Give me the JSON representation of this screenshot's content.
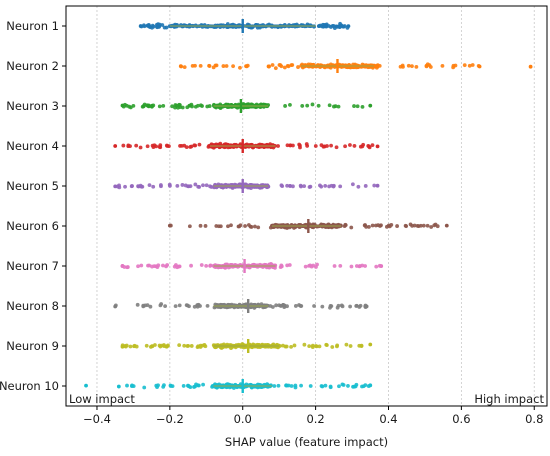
{
  "chart_data": {
    "type": "scatter",
    "xlabel": "SHAP value (feature impact)",
    "xlim": [
      -0.485,
      0.835
    ],
    "xticks": [
      -0.4,
      -0.2,
      0.0,
      0.2,
      0.4,
      0.6,
      0.8
    ],
    "xtick_labels": [
      "−0.4",
      "−0.2",
      "0.0",
      "0.2",
      "0.4",
      "0.6",
      "0.8"
    ],
    "grid": "vertical dashed",
    "annotations": {
      "left": "Low impact",
      "right": "High impact"
    },
    "categories": [
      "Neuron 1",
      "Neuron 2",
      "Neuron 3",
      "Neuron 4",
      "Neuron 5",
      "Neuron 6",
      "Neuron 7",
      "Neuron 8",
      "Neuron 9",
      "Neuron 10"
    ],
    "series": [
      {
        "color": "#1f77b4",
        "min": -0.28,
        "max": 0.29,
        "q1": -0.2,
        "q3": 0.2,
        "median": 0.0,
        "outliers": []
      },
      {
        "color": "#ff7f0e",
        "min": -0.17,
        "max": 0.65,
        "q1": 0.16,
        "q3": 0.36,
        "median": 0.26,
        "outliers": [
          0.79
        ]
      },
      {
        "color": "#2ca02c",
        "min": -0.33,
        "max": 0.35,
        "q1": -0.08,
        "q3": 0.07,
        "median": -0.005,
        "outliers": []
      },
      {
        "color": "#d62728",
        "min": -0.35,
        "max": 0.37,
        "q1": -0.09,
        "q3": 0.09,
        "median": 0.0,
        "outliers": []
      },
      {
        "color": "#9467bd",
        "min": -0.35,
        "max": 0.37,
        "q1": -0.08,
        "q3": 0.07,
        "median": 0.0,
        "outliers": []
      },
      {
        "color": "#8c564b",
        "min": -0.2,
        "max": 0.56,
        "q1": 0.08,
        "q3": 0.27,
        "median": 0.18,
        "outliers": []
      },
      {
        "color": "#e377c2",
        "min": -0.33,
        "max": 0.38,
        "q1": -0.08,
        "q3": 0.09,
        "median": 0.005,
        "outliers": []
      },
      {
        "color": "#7f7f7f",
        "min": -0.35,
        "max": 0.34,
        "q1": -0.08,
        "q3": 0.07,
        "median": 0.015,
        "outliers": []
      },
      {
        "color": "#bcbd22",
        "min": -0.33,
        "max": 0.35,
        "q1": -0.08,
        "q3": 0.1,
        "median": 0.015,
        "outliers": []
      },
      {
        "color": "#17becf",
        "min": -0.34,
        "max": 0.35,
        "q1": -0.08,
        "q3": 0.08,
        "median": 0.0,
        "outliers": [
          -0.43
        ]
      }
    ]
  }
}
